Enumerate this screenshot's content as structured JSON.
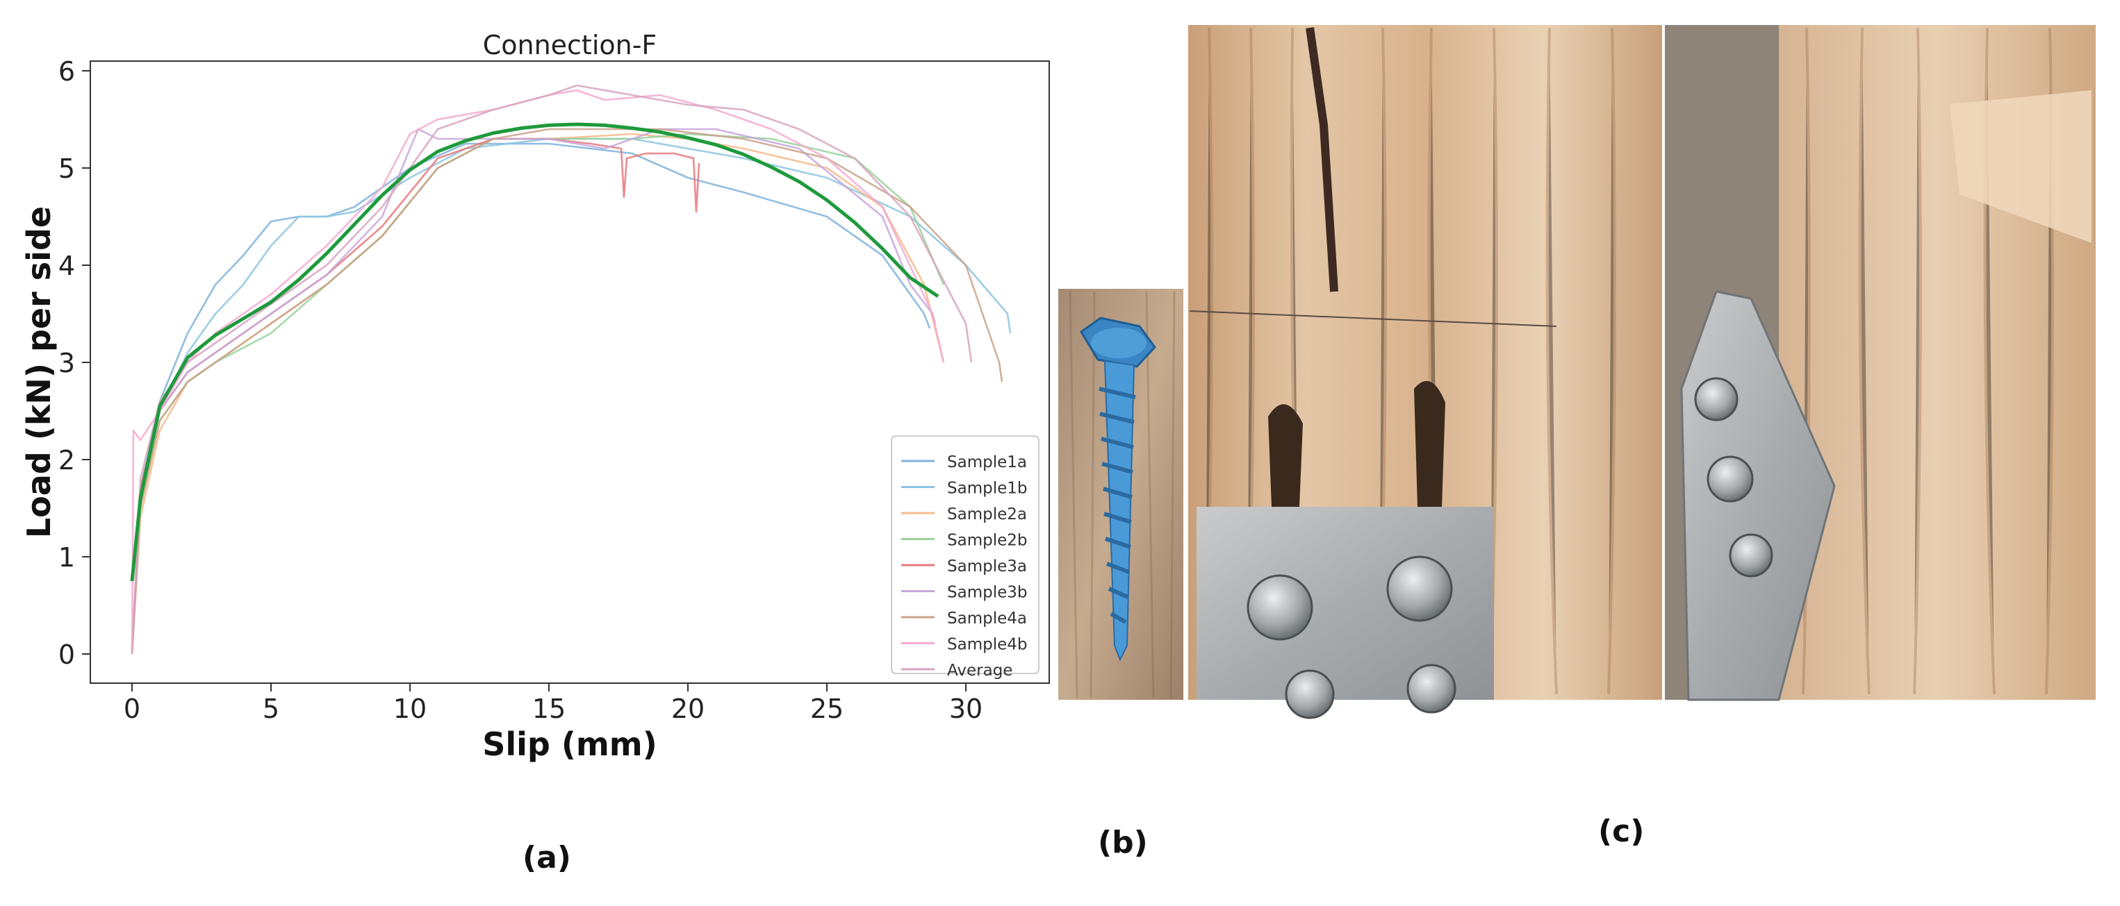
{
  "panel_labels": {
    "a": "(a)",
    "b": "(b)",
    "c": "(c)"
  },
  "chart_data": {
    "type": "line",
    "title": "Connection-F",
    "xlabel": "Slip (mm)",
    "ylabel": "Load (kN) per side",
    "xlim": [
      -1.5,
      33
    ],
    "ylim": [
      -0.3,
      6.1
    ],
    "xticks": [
      0,
      5,
      10,
      15,
      20,
      25,
      30
    ],
    "yticks": [
      0,
      1,
      2,
      3,
      4,
      5,
      6
    ],
    "grid": false,
    "legend_position": "bottom-right",
    "series": [
      {
        "name": "Sample1a",
        "color": "#7fb2dc",
        "x": [
          0,
          0.3,
          1,
          2,
          3,
          4,
          5,
          6,
          7,
          8,
          10,
          12,
          15,
          18,
          20,
          22,
          25,
          27,
          28.5,
          28.7
        ],
        "y": [
          0,
          1.7,
          2.6,
          3.3,
          3.8,
          4.1,
          4.45,
          4.5,
          4.5,
          4.6,
          5.0,
          5.25,
          5.25,
          5.15,
          4.9,
          4.75,
          4.5,
          4.1,
          3.5,
          3.35
        ]
      },
      {
        "name": "Sample1b",
        "color": "#8cc4e0",
        "x": [
          0,
          0.3,
          1,
          2,
          3,
          4,
          5,
          6,
          7,
          8,
          10,
          12,
          15,
          18,
          20,
          22,
          25,
          28,
          30,
          31.5,
          31.6
        ],
        "y": [
          0,
          1.5,
          2.5,
          3.1,
          3.5,
          3.8,
          4.2,
          4.5,
          4.5,
          4.55,
          4.9,
          5.2,
          5.3,
          5.3,
          5.2,
          5.1,
          4.9,
          4.5,
          4.0,
          3.5,
          3.3
        ]
      },
      {
        "name": "Sample2a",
        "color": "#f6b98a",
        "x": [
          0,
          0.3,
          1,
          2,
          3,
          5,
          7,
          9,
          11,
          13,
          15,
          18,
          20,
          22,
          25,
          27,
          28.5,
          29.2
        ],
        "y": [
          0,
          1.4,
          2.3,
          2.8,
          3.0,
          3.4,
          3.8,
          4.3,
          5.0,
          5.3,
          5.3,
          5.35,
          5.3,
          5.2,
          5.0,
          4.6,
          3.8,
          3.0
        ]
      },
      {
        "name": "Sample2b",
        "color": "#98d19a",
        "x": [
          0,
          0.3,
          1,
          2,
          3,
          5,
          7,
          9,
          11,
          13,
          15,
          18,
          20,
          23,
          26,
          28,
          29.2
        ],
        "y": [
          0,
          1.5,
          2.4,
          2.8,
          3.0,
          3.3,
          3.8,
          4.3,
          5.0,
          5.3,
          5.3,
          5.3,
          5.35,
          5.3,
          5.1,
          4.6,
          3.8
        ]
      },
      {
        "name": "Sample3a",
        "color": "#e8777a",
        "x": [
          0,
          0.3,
          1,
          2,
          3,
          5,
          7,
          9,
          11,
          13,
          15,
          16.5,
          17.6,
          17.7,
          17.8,
          18.5,
          19.5,
          20.2,
          20.3,
          20.4
        ],
        "y": [
          0,
          1.7,
          2.5,
          2.9,
          3.1,
          3.5,
          3.9,
          4.4,
          5.1,
          5.3,
          5.3,
          5.25,
          5.2,
          4.7,
          5.1,
          5.15,
          5.15,
          5.1,
          4.55,
          5.05
        ]
      },
      {
        "name": "Sample3b",
        "color": "#c7a6dc",
        "x": [
          0,
          0.3,
          1,
          2,
          3,
          5,
          7,
          9,
          10,
          10.3,
          11,
          13,
          15,
          17,
          19,
          21,
          24,
          27,
          28,
          28.8,
          28.9
        ],
        "y": [
          0,
          1.6,
          2.5,
          2.9,
          3.1,
          3.5,
          3.9,
          4.5,
          5.2,
          5.4,
          5.3,
          5.3,
          5.3,
          5.2,
          5.4,
          5.4,
          5.2,
          4.5,
          3.8,
          3.5,
          3.4
        ]
      },
      {
        "name": "Sample4a",
        "color": "#c9a28a",
        "x": [
          0,
          0.3,
          1,
          2,
          3,
          5,
          7,
          9,
          11,
          13,
          15,
          17,
          19,
          22,
          25,
          28,
          30,
          31.2,
          31.3
        ],
        "y": [
          0,
          1.5,
          2.4,
          2.8,
          3.0,
          3.4,
          3.8,
          4.3,
          5.0,
          5.3,
          5.4,
          5.4,
          5.4,
          5.3,
          5.1,
          4.6,
          4.0,
          3.0,
          2.8
        ]
      },
      {
        "name": "Sample4b",
        "color": "#f4a9d0",
        "x": [
          0,
          0.05,
          0.3,
          1,
          2,
          3,
          5,
          7,
          9,
          10,
          11,
          13,
          15,
          16,
          17,
          19,
          21,
          23,
          25,
          27,
          28.8,
          29.2
        ],
        "y": [
          0,
          2.3,
          2.2,
          2.5,
          3.0,
          3.3,
          3.7,
          4.2,
          4.8,
          5.35,
          5.5,
          5.6,
          5.75,
          5.8,
          5.7,
          5.75,
          5.6,
          5.4,
          5.1,
          4.6,
          3.5,
          3.0
        ]
      },
      {
        "name": "Average",
        "color": "#d7a3bf",
        "x": [
          0,
          0.3,
          1,
          2,
          3,
          5,
          7,
          9,
          11,
          13,
          15,
          16,
          18,
          20,
          22,
          24,
          26,
          28,
          30,
          30.2
        ],
        "y": [
          0,
          1.8,
          2.6,
          3.0,
          3.2,
          3.6,
          4.0,
          4.6,
          5.4,
          5.6,
          5.75,
          5.85,
          5.75,
          5.65,
          5.6,
          5.4,
          5.1,
          4.5,
          3.4,
          3.0
        ]
      },
      {
        "name": "",
        "color": "#1e9a3c",
        "x": [
          0,
          0.3,
          1,
          2,
          3,
          4,
          5,
          6,
          7,
          8,
          9,
          10,
          11,
          12,
          13,
          14,
          15,
          16,
          17,
          18,
          19,
          20,
          21,
          22,
          23,
          24,
          25,
          26,
          27,
          28,
          29
        ],
        "y": [
          0.75,
          1.6,
          2.55,
          3.05,
          3.28,
          3.45,
          3.62,
          3.85,
          4.12,
          4.42,
          4.72,
          4.98,
          5.17,
          5.28,
          5.36,
          5.41,
          5.44,
          5.45,
          5.44,
          5.41,
          5.37,
          5.31,
          5.24,
          5.14,
          5.01,
          4.86,
          4.67,
          4.44,
          4.17,
          3.87,
          3.68
        ]
      }
    ]
  }
}
